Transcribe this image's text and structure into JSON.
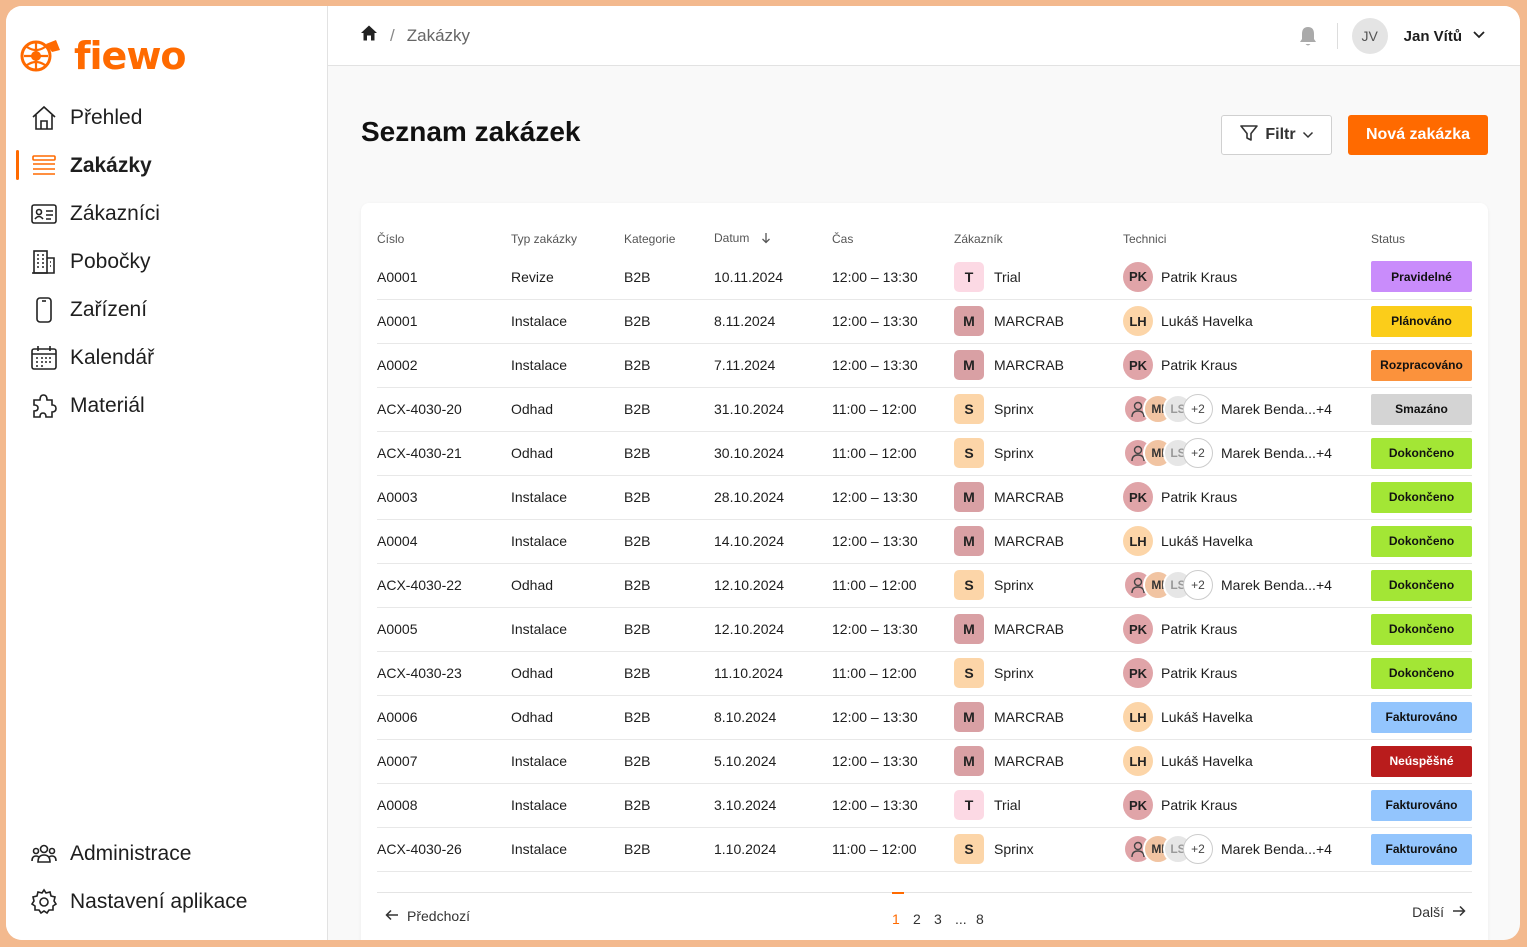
{
  "brand": {
    "name": "fiewo",
    "color": "#ff6a00"
  },
  "nav": {
    "items": [
      {
        "label": "Přehled",
        "icon": "home-icon"
      },
      {
        "label": "Zakázky",
        "icon": "list-icon",
        "active": true
      },
      {
        "label": "Zákazníci",
        "icon": "contact-card-icon"
      },
      {
        "label": "Pobočky",
        "icon": "building-icon"
      },
      {
        "label": "Zařízení",
        "icon": "phone-device-icon"
      },
      {
        "label": "Kalendář",
        "icon": "calendar-icon"
      },
      {
        "label": "Materiál",
        "icon": "puzzle-icon"
      }
    ],
    "bottom": [
      {
        "label": "Administrace",
        "icon": "users-icon"
      },
      {
        "label": "Nastavení aplikace",
        "icon": "gear-icon"
      }
    ]
  },
  "topbar": {
    "breadcrumb": {
      "separator": "/",
      "current": "Zakázky"
    },
    "user": {
      "initials": "JV",
      "name": "Jan Vítů"
    }
  },
  "page": {
    "title": "Seznam zakázek",
    "filter_label": "Filtr",
    "new_label": "Nová zakázka"
  },
  "table": {
    "columns": [
      "Číslo",
      "Typ zakázky",
      "Kategorie",
      "Datum",
      "Čas",
      "Zákazník",
      "Technici",
      "Status"
    ],
    "rows": [
      {
        "cislo": "A0001",
        "typ": "Revize",
        "kat": "B2B",
        "datum": "10.11.2024",
        "cas": "12:00 – 13:30",
        "zak_i": "T",
        "zak": "Trial",
        "tech_i": "PK",
        "tech": "Patrik Kraus",
        "status": "Pravidelné"
      },
      {
        "cislo": "A0001",
        "typ": "Instalace",
        "kat": "B2B",
        "datum": "8.11.2024",
        "cas": "12:00 – 13:30",
        "zak_i": "M",
        "zak": "MARCRAB",
        "tech_i": "LH",
        "tech": "Lukáš Havelka",
        "status": "Plánováno"
      },
      {
        "cislo": "A0002",
        "typ": "Instalace",
        "kat": "B2B",
        "datum": "7.11.2024",
        "cas": "12:00 – 13:30",
        "zak_i": "M",
        "zak": "MARCRAB",
        "tech_i": "PK",
        "tech": "Patrik Kraus",
        "status": "Rozpracováno"
      },
      {
        "cislo": "ACX-4030-20",
        "typ": "Odhad",
        "kat": "B2B",
        "datum": "31.10.2024",
        "cas": "11:00 – 12:00",
        "zak_i": "S",
        "zak": "Sprinx",
        "group": true,
        "g1": "MI",
        "g2": "LS",
        "more": "+2",
        "tech": "Marek Benda...+4",
        "status": "Smazáno"
      },
      {
        "cislo": "ACX-4030-21",
        "typ": "Odhad",
        "kat": "B2B",
        "datum": "30.10.2024",
        "cas": "11:00 – 12:00",
        "zak_i": "S",
        "zak": "Sprinx",
        "group": true,
        "g1": "MI",
        "g2": "LS",
        "more": "+2",
        "tech": "Marek Benda...+4",
        "status": "Dokončeno"
      },
      {
        "cislo": "A0003",
        "typ": "Instalace",
        "kat": "B2B",
        "datum": "28.10.2024",
        "cas": "12:00 – 13:30",
        "zak_i": "M",
        "zak": "MARCRAB",
        "tech_i": "PK",
        "tech": "Patrik Kraus",
        "status": "Dokončeno"
      },
      {
        "cislo": "A0004",
        "typ": "Instalace",
        "kat": "B2B",
        "datum": "14.10.2024",
        "cas": "12:00 – 13:30",
        "zak_i": "M",
        "zak": "MARCRAB",
        "tech_i": "LH",
        "tech": "Lukáš Havelka",
        "status": "Dokončeno"
      },
      {
        "cislo": "ACX-4030-22",
        "typ": "Odhad",
        "kat": "B2B",
        "datum": "12.10.2024",
        "cas": "11:00 – 12:00",
        "zak_i": "S",
        "zak": "Sprinx",
        "group": true,
        "g1": "MI",
        "g2": "LS",
        "more": "+2",
        "tech": "Marek Benda...+4",
        "status": "Dokončeno"
      },
      {
        "cislo": "A0005",
        "typ": "Instalace",
        "kat": "B2B",
        "datum": "12.10.2024",
        "cas": "12:00 – 13:30",
        "zak_i": "M",
        "zak": "MARCRAB",
        "tech_i": "PK",
        "tech": "Patrik Kraus",
        "status": "Dokončeno"
      },
      {
        "cislo": "ACX-4030-23",
        "typ": "Odhad",
        "kat": "B2B",
        "datum": "11.10.2024",
        "cas": "11:00 – 12:00",
        "zak_i": "S",
        "zak": "Sprinx",
        "tech_i": "PK",
        "tech": "Patrik Kraus",
        "status": "Dokončeno"
      },
      {
        "cislo": "A0006",
        "typ": "Odhad",
        "kat": "B2B",
        "datum": "8.10.2024",
        "cas": "12:00 – 13:30",
        "zak_i": "M",
        "zak": "MARCRAB",
        "tech_i": "LH",
        "tech": "Lukáš Havelka",
        "status": "Fakturováno"
      },
      {
        "cislo": "A0007",
        "typ": "Instalace",
        "kat": "B2B",
        "datum": "5.10.2024",
        "cas": "12:00 – 13:30",
        "zak_i": "M",
        "zak": "MARCRAB",
        "tech_i": "LH",
        "tech": "Lukáš Havelka",
        "status": "Neúspěšné"
      },
      {
        "cislo": "A0008",
        "typ": "Instalace",
        "kat": "B2B",
        "datum": "3.10.2024",
        "cas": "12:00 – 13:30",
        "zak_i": "T",
        "zak": "Trial",
        "tech_i": "PK",
        "tech": "Patrik Kraus",
        "status": "Fakturováno"
      },
      {
        "cislo": "ACX-4030-26",
        "typ": "Instalace",
        "kat": "B2B",
        "datum": "1.10.2024",
        "cas": "11:00 – 12:00",
        "zak_i": "S",
        "zak": "Sprinx",
        "group": true,
        "g1": "MI",
        "g2": "LS",
        "more": "+2",
        "tech": "Marek Benda...+4",
        "status": "Fakturováno"
      }
    ]
  },
  "colors": {
    "customer": {
      "T": "#fcd9e4",
      "M": "#d9a0a4",
      "S": "#fcd5a8"
    },
    "tech": {
      "PK": "#e0a4a8",
      "LH": "#fcd5a8"
    },
    "status": {
      "Pravidelné": {
        "bg": "#c98cfb",
        "fg": "#111111"
      },
      "Plánováno": {
        "bg": "#fbcd1a",
        "fg": "#111111"
      },
      "Rozpracováno": {
        "bg": "#fb923c",
        "fg": "#111111"
      },
      "Smazáno": {
        "bg": "#d4d4d4",
        "fg": "#111111"
      },
      "Dokončeno": {
        "bg": "#a3e635",
        "fg": "#111111"
      },
      "Fakturováno": {
        "bg": "#93c5fd",
        "fg": "#111111"
      },
      "Neúspěšné": {
        "bg": "#b91c1c",
        "fg": "#ffffff"
      }
    }
  },
  "pagination": {
    "prev_label": "Předchozí",
    "next_label": "Další",
    "pages": [
      "1",
      "2",
      "3",
      "...",
      "8"
    ],
    "current": "1"
  }
}
